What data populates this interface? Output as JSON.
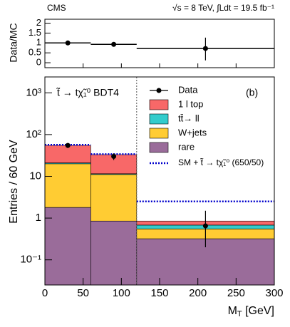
{
  "header": {
    "left": "CMS",
    "right": "√s = 8 TeV, ∫Ldt = 19.5 fb⁻¹"
  },
  "chart_data": [
    {
      "type": "ratio",
      "ylabel": "Data/MC",
      "bins": [
        0,
        60,
        120,
        300
      ],
      "x": [
        30,
        90,
        210
      ],
      "values": [
        1.0,
        0.93,
        0.72
      ],
      "error_low": [
        0.1,
        0.1,
        0.6
      ],
      "error_high": [
        0.1,
        0.1,
        0.55
      ],
      "xlim": [
        0,
        300
      ],
      "ylim": [
        -0.25,
        2.2
      ],
      "yticks": [
        0,
        0.5,
        1,
        1.5,
        2
      ],
      "color": "#000000"
    },
    {
      "type": "histogram",
      "log_y": true,
      "ylabel": "Entries / 60 GeV",
      "xlabel": "M",
      "xlabel_sub": "T",
      "xlabel_unit": " [GeV]",
      "annotation": "t̃ → tχ̃₁⁰ BDT4",
      "panel_label": "(b)",
      "bins": [
        0,
        60,
        120,
        300
      ],
      "xlim": [
        0,
        300
      ],
      "xticks": [
        0,
        50,
        100,
        150,
        200,
        250,
        300
      ],
      "ylim": [
        0.025,
        2400
      ],
      "yticks": [
        {
          "value": 0.1,
          "label": "10⁻¹"
        },
        1,
        10,
        {
          "value": 100,
          "label": "10²"
        },
        {
          "value": 1000,
          "label": "10³"
        }
      ],
      "vline": 120,
      "data": {
        "name": "Data",
        "x": [
          30,
          90,
          210
        ],
        "values": [
          55,
          30,
          0.65
        ],
        "error_low": [
          7.4,
          5.5,
          0.45
        ],
        "error_high": [
          7.4,
          5.5,
          0.85
        ],
        "color": "#000000"
      },
      "series": [
        {
          "name": "1 l top",
          "color": "#f86868",
          "values": [
            34,
            21.5,
            0.17
          ]
        },
        {
          "name": "tt̄→ ll",
          "color": "#33cccc",
          "values": [
            1,
            0.5,
            0.13
          ]
        },
        {
          "name": "W+jets",
          "color": "#ffcc33",
          "values": [
            18.2,
            10.2,
            0.23
          ]
        },
        {
          "name": "rare",
          "color": "#9a6c9a",
          "values": [
            1.8,
            0.85,
            0.32
          ]
        }
      ],
      "signal": {
        "name": "SM + t̃ → tχ̃₁⁰ (650/50)",
        "color": "#0000cc",
        "values": [
          57,
          34,
          2.5
        ]
      }
    }
  ]
}
